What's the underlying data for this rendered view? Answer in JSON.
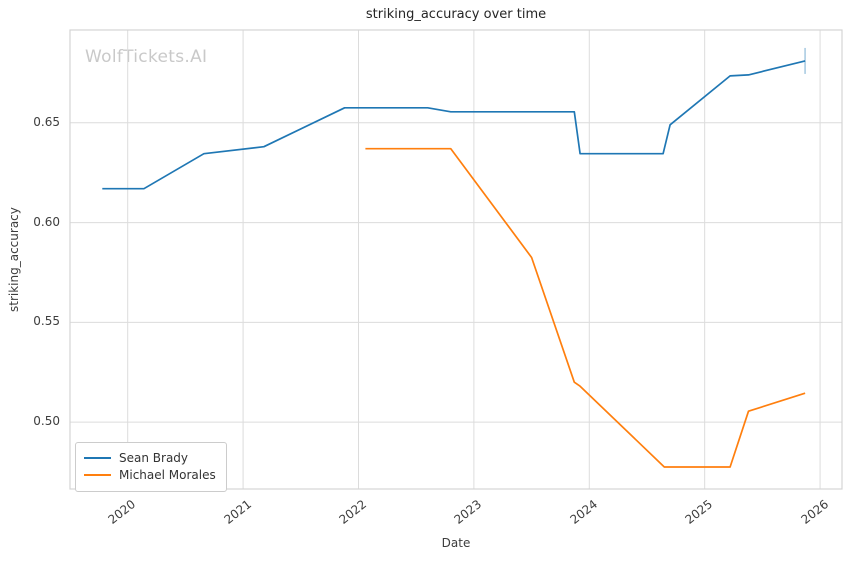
{
  "watermark": "WolfTickets.AI",
  "chart_data": {
    "type": "line",
    "title": "striking_accuracy over time",
    "xlabel": "Date",
    "ylabel": "striking_accuracy",
    "x_unit": "decimal_year",
    "xlim": [
      2019.5,
      2026.19
    ],
    "ylim": [
      0.4665,
      0.6965
    ],
    "xticks": [
      2020,
      2021,
      2022,
      2023,
      2024,
      2025,
      2026
    ],
    "yticks": [
      0.5,
      0.55,
      0.6,
      0.65
    ],
    "grid": true,
    "legend_position": "lower left",
    "colors": {
      "grid": "#dcdcdc",
      "spine": "#d4d4d4",
      "text": "#3d3d3d",
      "watermark": "#c9c9c9"
    },
    "series": [
      {
        "name": "Sean Brady",
        "color": "#1f77b4",
        "end_tick_marker": true,
        "points": [
          [
            2019.78,
            0.617
          ],
          [
            2020.14,
            0.617
          ],
          [
            2020.66,
            0.6345
          ],
          [
            2021.18,
            0.638
          ],
          [
            2021.88,
            0.6575
          ],
          [
            2022.6,
            0.6575
          ],
          [
            2022.8,
            0.6555
          ],
          [
            2023.87,
            0.6555
          ],
          [
            2023.92,
            0.6345
          ],
          [
            2024.64,
            0.6345
          ],
          [
            2024.7,
            0.649
          ],
          [
            2025.22,
            0.6735
          ],
          [
            2025.38,
            0.674
          ],
          [
            2025.87,
            0.681
          ]
        ]
      },
      {
        "name": "Michael Morales",
        "color": "#ff7f0e",
        "end_tick_marker": false,
        "points": [
          [
            2022.06,
            0.637
          ],
          [
            2022.8,
            0.637
          ],
          [
            2023.5,
            0.5825
          ],
          [
            2023.87,
            0.52
          ],
          [
            2023.92,
            0.518
          ],
          [
            2024.65,
            0.4775
          ],
          [
            2025.22,
            0.4775
          ],
          [
            2025.38,
            0.5055
          ],
          [
            2025.87,
            0.5145
          ]
        ]
      }
    ]
  }
}
